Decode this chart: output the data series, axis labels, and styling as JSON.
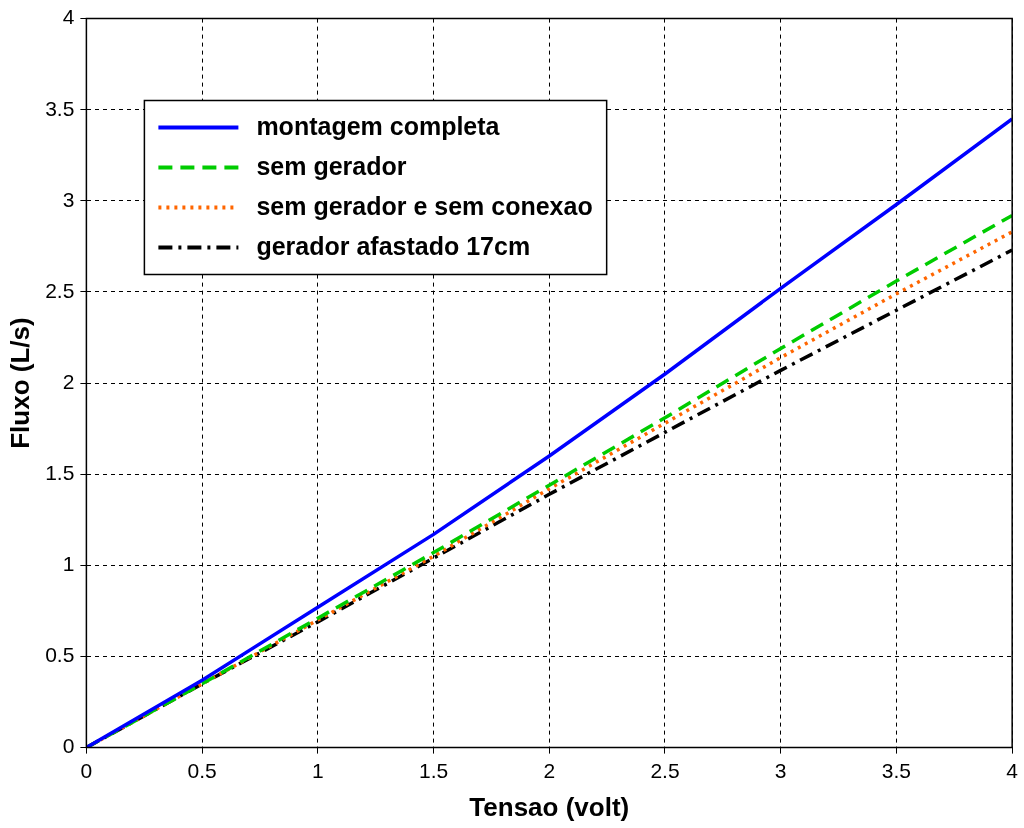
{
  "chart_data": {
    "type": "line",
    "xlabel": "Tensao (volt)",
    "ylabel": "Fluxo (L/s)",
    "x": [
      0,
      0.5,
      1,
      1.5,
      2,
      2.5,
      3,
      3.5,
      4
    ],
    "series": [
      {
        "name": "montagem completa",
        "color": "#0000ff",
        "line_style": "solid",
        "values": [
          0,
          0.37,
          0.77,
          1.17,
          1.6,
          2.05,
          2.52,
          2.98,
          3.45
        ]
      },
      {
        "name": "sem gerador",
        "color": "#00cc00",
        "line_style": "dashed",
        "values": [
          0,
          0.35,
          0.71,
          1.07,
          1.44,
          1.81,
          2.19,
          2.56,
          2.92
        ]
      },
      {
        "name": "sem gerador e sem conexao",
        "color": "#ff6600",
        "line_style": "dotted",
        "values": [
          0,
          0.35,
          0.7,
          1.05,
          1.42,
          1.78,
          2.14,
          2.49,
          2.83
        ]
      },
      {
        "name": "gerador afastado 17cm",
        "color": "#000000",
        "line_style": "dashdot",
        "values": [
          0,
          0.35,
          0.69,
          1.04,
          1.39,
          1.73,
          2.07,
          2.4,
          2.73
        ]
      }
    ],
    "xlim": [
      0,
      4
    ],
    "xticks": [
      0,
      0.5,
      1,
      1.5,
      2,
      2.5,
      3,
      3.5,
      4
    ],
    "ylim": [
      0,
      4
    ],
    "yticks": [
      0,
      0.5,
      1,
      1.5,
      2,
      2.5,
      3,
      3.5,
      4
    ],
    "grid": true,
    "legend": "top left",
    "marker": "none"
  }
}
